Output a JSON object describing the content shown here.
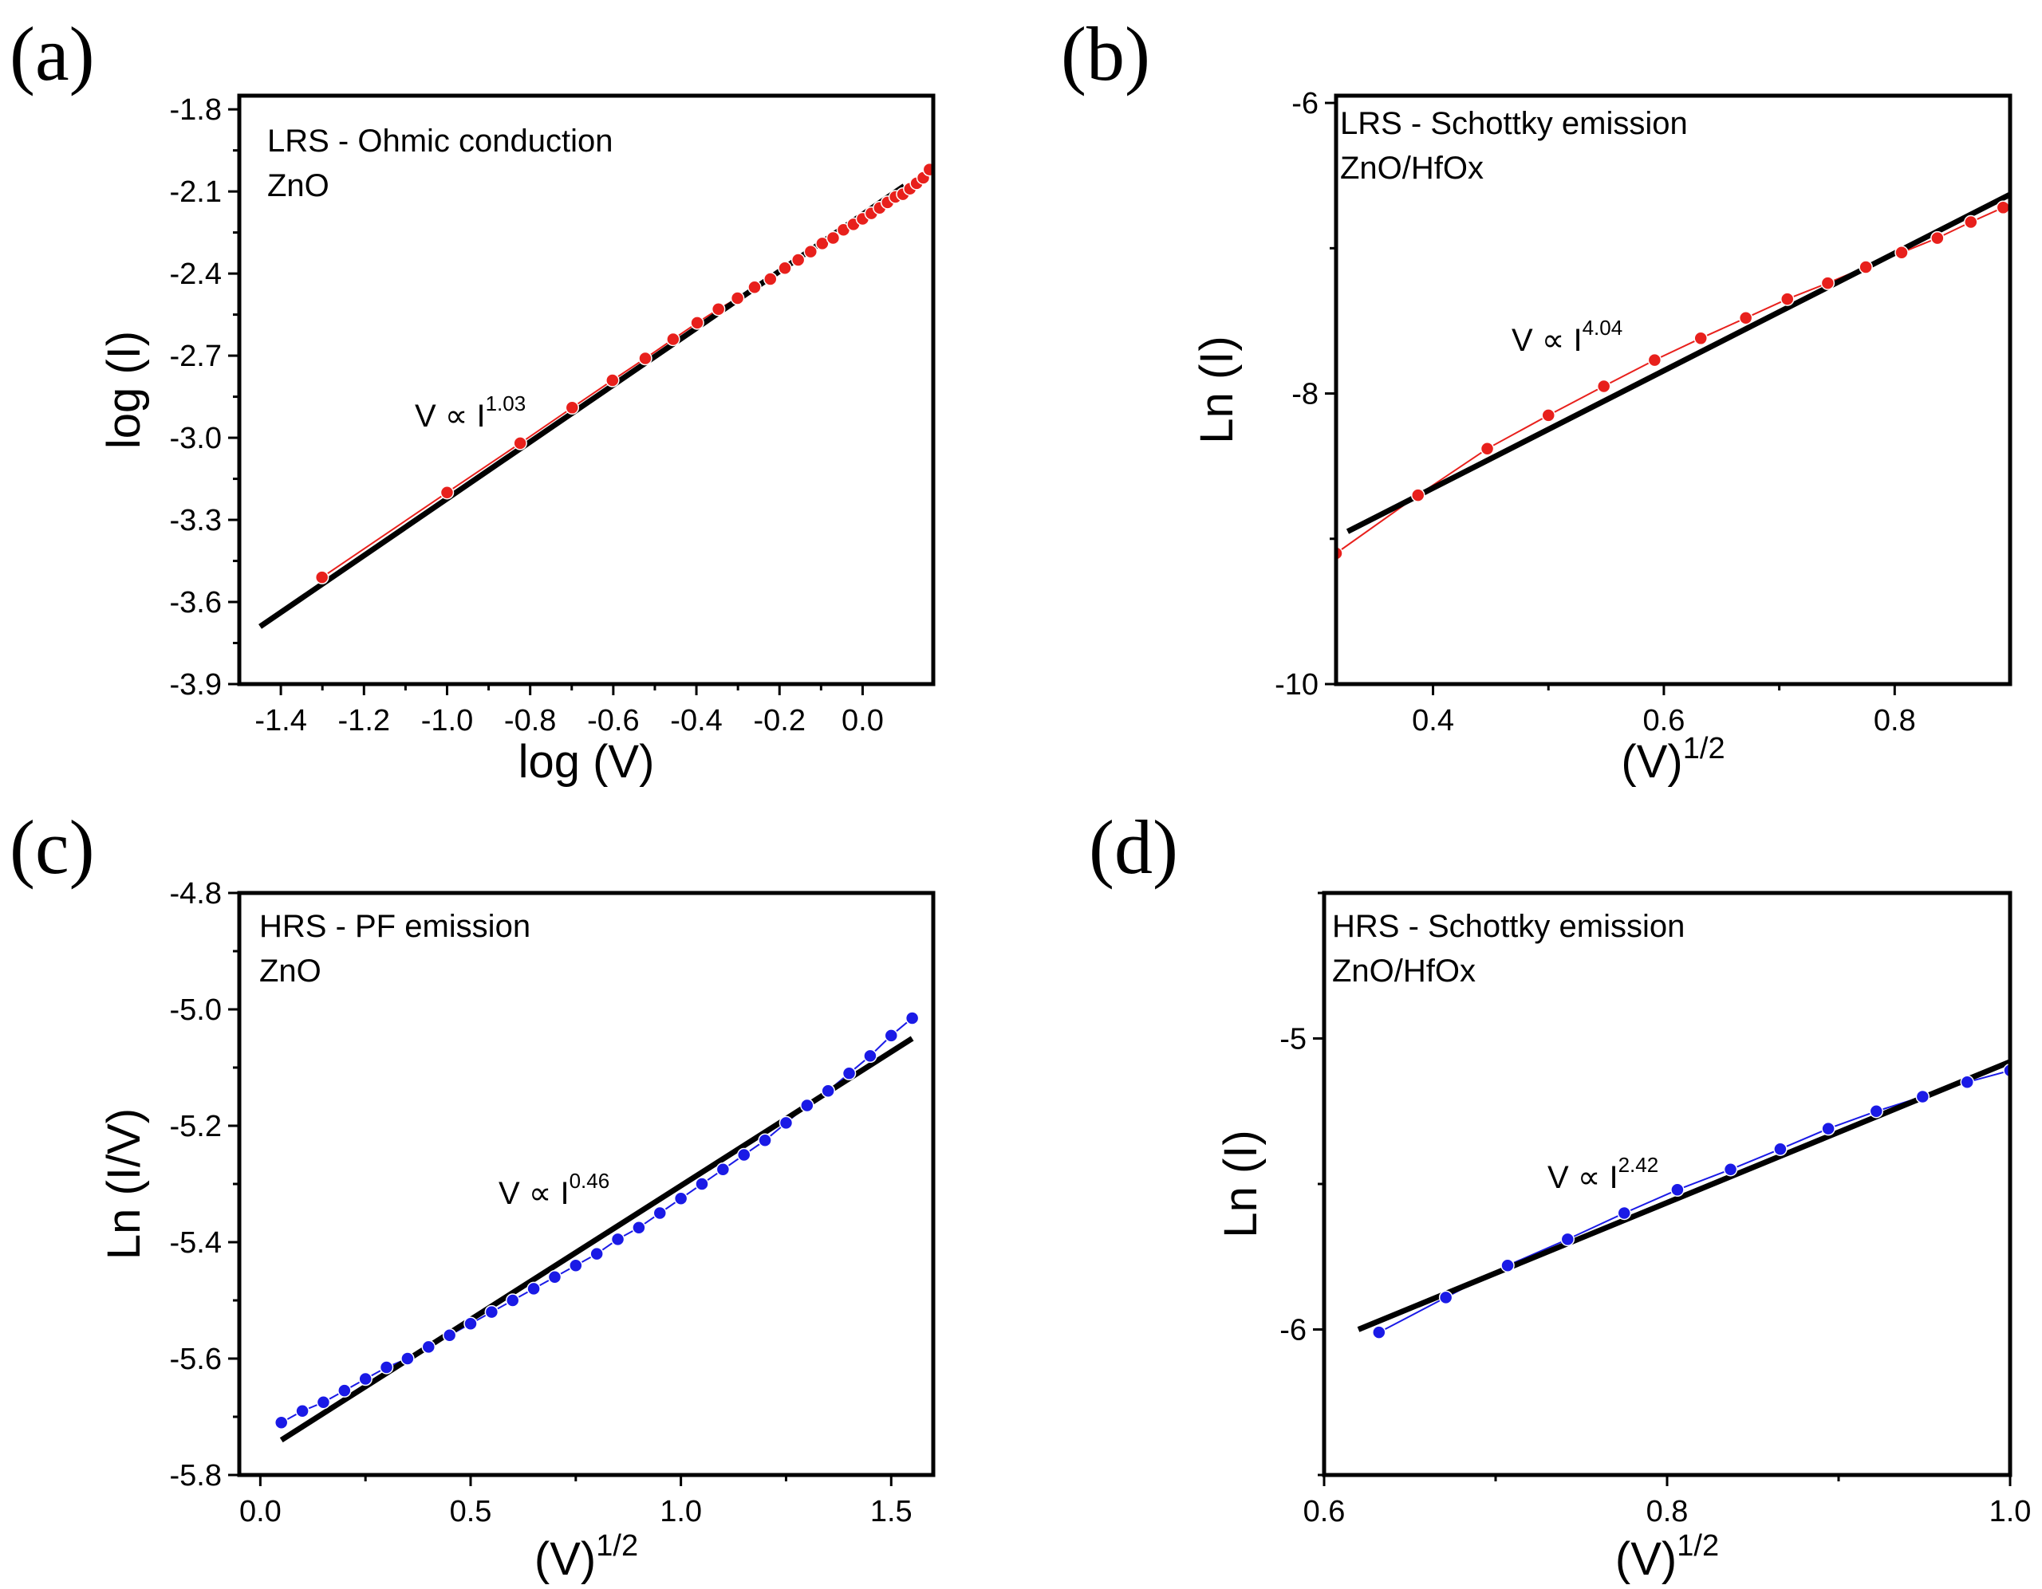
{
  "chart_data": [
    {
      "type": "line",
      "panel_label": "(a)",
      "annotation_lines": [
        "LRS - Ohmic conduction",
        "ZnO"
      ],
      "fit_text": "V ∝ I",
      "fit_exponent": "1.03",
      "xlabel": "log (V)",
      "xlabel_sup": "",
      "ylabel": "log (I)",
      "xlim": [
        -1.5,
        0.17
      ],
      "ylim": [
        -3.9,
        -1.75
      ],
      "xticks": [
        -1.4,
        -1.2,
        -1.0,
        -0.8,
        -0.6,
        -0.4,
        -0.2,
        0.0
      ],
      "xtick_labels": [
        "-1.4",
        "-1.2",
        "-1.0",
        "-0.8",
        "-0.6",
        "-0.4",
        "-0.2",
        "0.0"
      ],
      "yticks": [
        -3.9,
        -3.6,
        -3.3,
        -3.0,
        -2.7,
        -2.4,
        -2.1,
        -1.8
      ],
      "ytick_labels": [
        "-3.9",
        "-3.6",
        "-3.3",
        "-3.0",
        "-2.7",
        "-2.4",
        "-2.1",
        "-1.8"
      ],
      "series_color": "#e8201c",
      "fit_color": "#000000",
      "series": [
        {
          "name": "data",
          "x": [
            -1.301,
            -1.0,
            -0.824,
            -0.699,
            -0.602,
            -0.523,
            -0.456,
            -0.398,
            -0.347,
            -0.301,
            -0.26,
            -0.222,
            -0.187,
            -0.155,
            -0.125,
            -0.097,
            -0.071,
            -0.046,
            -0.022,
            0.0,
            0.021,
            0.041,
            0.06,
            0.079,
            0.097,
            0.114,
            0.13,
            0.146,
            0.161
          ],
          "y": [
            -3.51,
            -3.2,
            -3.02,
            -2.89,
            -2.79,
            -2.71,
            -2.64,
            -2.58,
            -2.53,
            -2.49,
            -2.45,
            -2.42,
            -2.38,
            -2.35,
            -2.32,
            -2.29,
            -2.27,
            -2.24,
            -2.22,
            -2.2,
            -2.18,
            -2.16,
            -2.14,
            -2.12,
            -2.11,
            -2.09,
            -2.07,
            -2.05,
            -2.02
          ]
        }
      ],
      "fit": {
        "x": [
          -1.45,
          0.1
        ],
        "y": [
          -3.69,
          -2.08
        ]
      }
    },
    {
      "type": "line",
      "panel_label": "(b)",
      "annotation_lines": [
        "LRS - Schottky emission",
        "ZnO/HfOx"
      ],
      "fit_text": "V ∝ I",
      "fit_exponent": "4.04",
      "xlabel": "(V)",
      "xlabel_sup": "1/2",
      "ylabel": "Ln (I)",
      "xlim": [
        0.316,
        0.9
      ],
      "ylim": [
        -10.0,
        -5.95
      ],
      "xticks": [
        0.4,
        0.6,
        0.8
      ],
      "xtick_labels": [
        "0.4",
        "0.6",
        "0.8"
      ],
      "yticks": [
        -10,
        -8,
        -6
      ],
      "ytick_labels": [
        "-10",
        "-8",
        "-6"
      ],
      "yminor": [
        -9,
        -7
      ],
      "series_color": "#e8201c",
      "fit_color": "#000000",
      "series": [
        {
          "name": "data",
          "x": [
            0.316,
            0.387,
            0.447,
            0.5,
            0.548,
            0.592,
            0.632,
            0.671,
            0.707,
            0.742,
            0.775,
            0.806,
            0.837,
            0.866,
            0.894
          ],
          "y": [
            -9.1,
            -8.7,
            -8.38,
            -8.15,
            -7.95,
            -7.77,
            -7.62,
            -7.48,
            -7.35,
            -7.24,
            -7.13,
            -7.03,
            -6.93,
            -6.82,
            -6.72
          ]
        }
      ],
      "fit": {
        "x": [
          0.326,
          0.9
        ],
        "y": [
          -8.95,
          -6.63
        ]
      }
    },
    {
      "type": "line",
      "panel_label": "(c)",
      "annotation_lines": [
        "HRS - PF emission",
        "ZnO"
      ],
      "fit_text": "V ∝ I",
      "fit_exponent": "0.46",
      "xlabel": "(V)",
      "xlabel_sup": "1/2",
      "ylabel": "Ln (I/V)",
      "xlim": [
        -0.05,
        1.6
      ],
      "ylim": [
        -5.8,
        -4.8
      ],
      "xticks": [
        0.0,
        0.5,
        1.0,
        1.5
      ],
      "xtick_labels": [
        "0.0",
        "0.5",
        "1.0",
        "1.5"
      ],
      "yticks": [
        -5.8,
        -5.6,
        -5.4,
        -5.2,
        -5.0,
        -4.8
      ],
      "ytick_labels": [
        "-5.8",
        "-5.6",
        "-5.4",
        "-5.2",
        "-5.0",
        "-4.8"
      ],
      "series_color": "#1a1ae6",
      "fit_color": "#000000",
      "series": [
        {
          "name": "data",
          "x": [
            0.05,
            0.1,
            0.15,
            0.2,
            0.25,
            0.3,
            0.35,
            0.4,
            0.45,
            0.5,
            0.55,
            0.6,
            0.65,
            0.7,
            0.75,
            0.8,
            0.85,
            0.9,
            0.95,
            1.0,
            1.05,
            1.1,
            1.15,
            1.2,
            1.25,
            1.3,
            1.35,
            1.4,
            1.45,
            1.5,
            1.55
          ],
          "y": [
            -5.71,
            -5.69,
            -5.675,
            -5.655,
            -5.635,
            -5.615,
            -5.6,
            -5.58,
            -5.56,
            -5.54,
            -5.52,
            -5.5,
            -5.48,
            -5.46,
            -5.44,
            -5.42,
            -5.395,
            -5.375,
            -5.35,
            -5.325,
            -5.3,
            -5.275,
            -5.25,
            -5.225,
            -5.195,
            -5.165,
            -5.14,
            -5.11,
            -5.08,
            -5.045,
            -5.015
          ]
        }
      ],
      "fit": {
        "x": [
          0.05,
          1.55
        ],
        "y": [
          -5.74,
          -5.05
        ]
      }
    },
    {
      "type": "line",
      "panel_label": "(d)",
      "annotation_lines": [
        "HRS - Schottky emission",
        "ZnO/HfOx"
      ],
      "fit_text": "V ∝ I",
      "fit_exponent": "2.42",
      "xlabel": "(V)",
      "xlabel_sup": "1/2",
      "ylabel": "Ln (I)",
      "xlim": [
        0.6,
        1.0
      ],
      "ylim": [
        -6.5,
        -4.5
      ],
      "xticks": [
        0.6,
        0.8,
        1.0
      ],
      "xtick_labels": [
        "0.6",
        "0.8",
        "1.0"
      ],
      "yticks": [
        -6,
        -5
      ],
      "ytick_labels": [
        "-6",
        "-5"
      ],
      "yminor": [
        -6.5,
        -5.5,
        -4.5
      ],
      "series_color": "#1a1ae6",
      "fit_color": "#000000",
      "series": [
        {
          "name": "data",
          "x": [
            0.632,
            0.671,
            0.707,
            0.742,
            0.775,
            0.806,
            0.837,
            0.866,
            0.894,
            0.922,
            0.949,
            0.975,
            1.0
          ],
          "y": [
            -6.01,
            -5.89,
            -5.78,
            -5.69,
            -5.6,
            -5.52,
            -5.45,
            -5.38,
            -5.31,
            -5.25,
            -5.2,
            -5.15,
            -5.11
          ]
        }
      ],
      "fit": {
        "x": [
          0.62,
          1.0
        ],
        "y": [
          -6.0,
          -5.08
        ]
      }
    }
  ]
}
